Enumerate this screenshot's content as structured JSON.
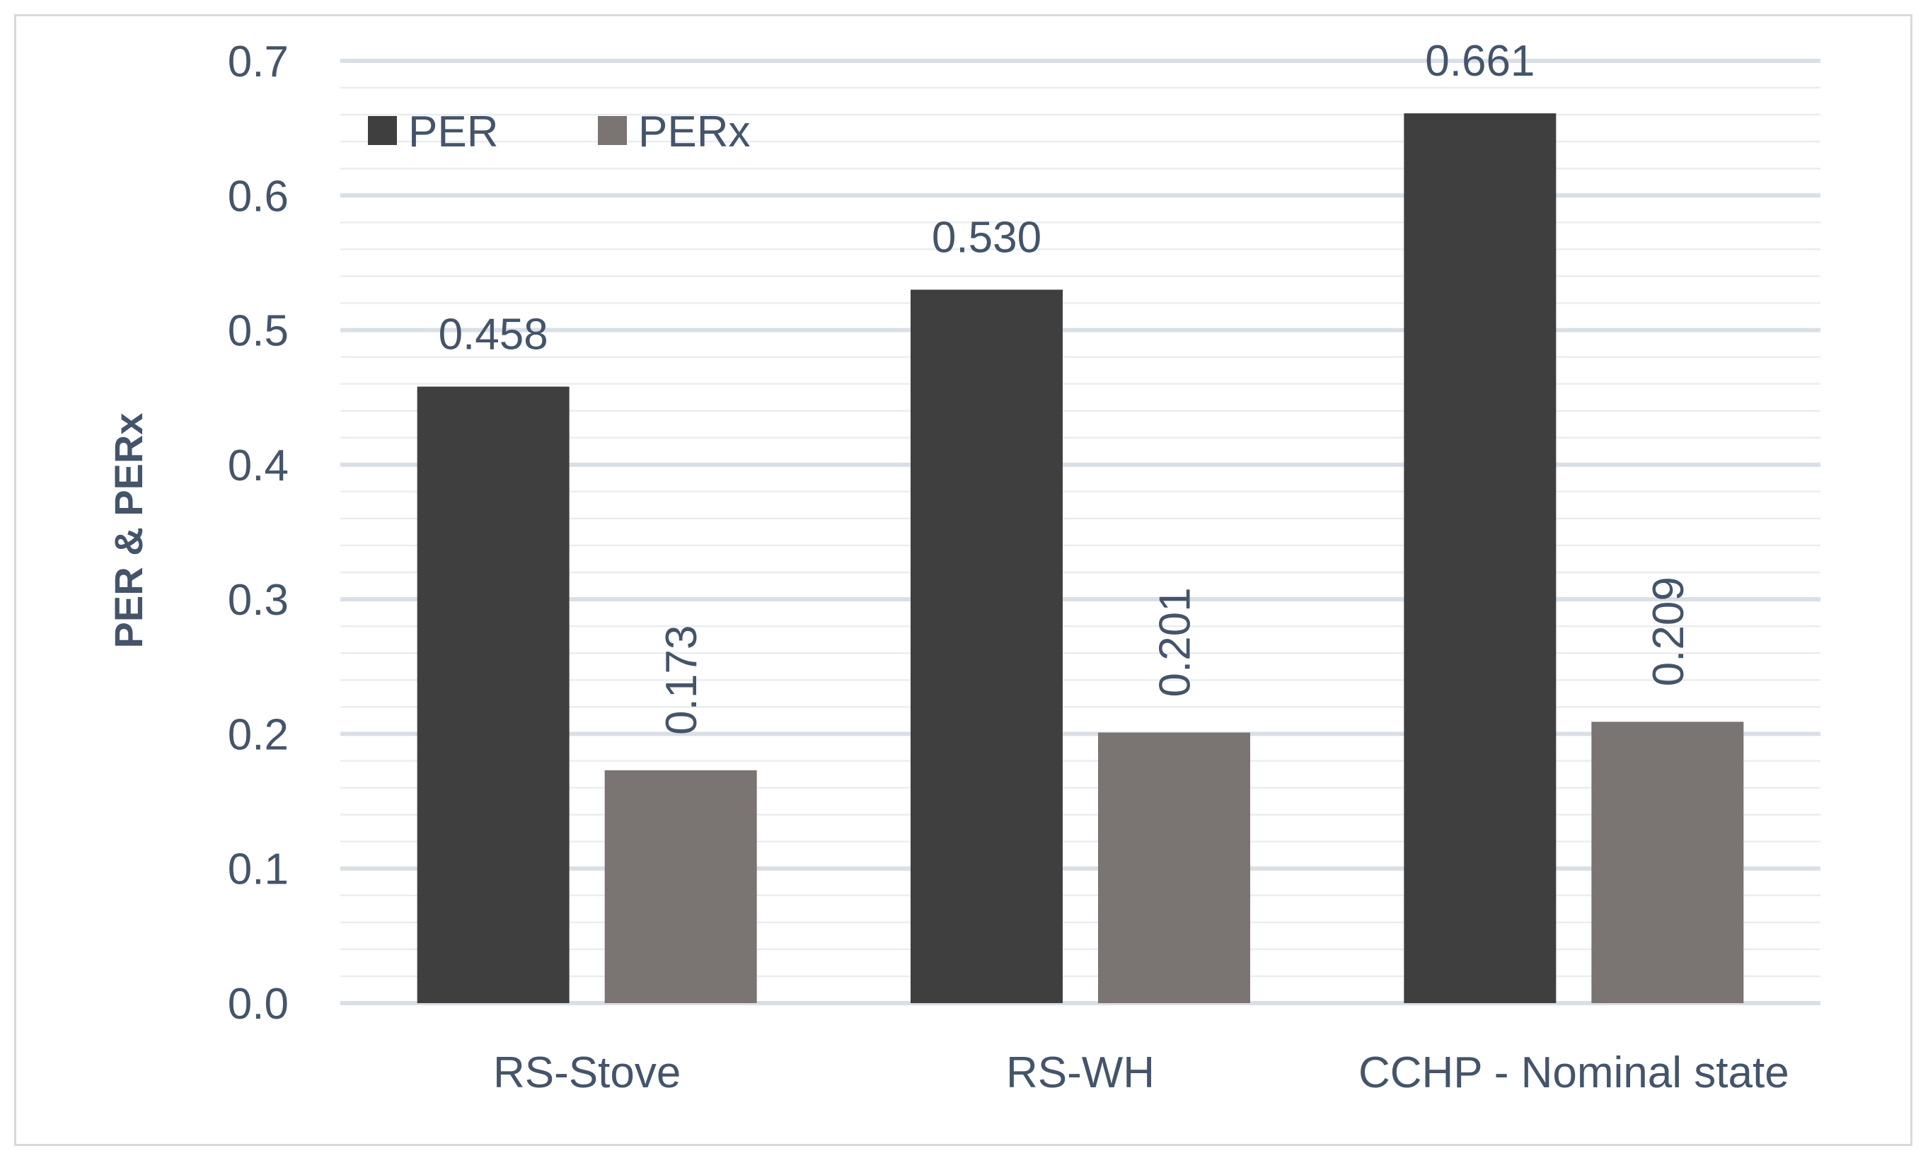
{
  "chart_data": {
    "type": "bar",
    "title": "",
    "xlabel": "",
    "ylabel": "PER & PERx",
    "categories": [
      "RS-Stove",
      "RS-WH",
      "CCHP - Nominal state"
    ],
    "series": [
      {
        "name": "PER",
        "values": [
          0.458,
          0.53,
          0.661
        ],
        "labels": [
          "0.458",
          "0.530",
          "0.661"
        ],
        "color": "#3f3f3f"
      },
      {
        "name": "PERx",
        "values": [
          0.173,
          0.201,
          0.209
        ],
        "labels": [
          "0.173",
          "0.201",
          "0.209"
        ],
        "color": "#7a7473"
      }
    ],
    "ylim": [
      0,
      0.7
    ],
    "yticks": [
      0.0,
      0.1,
      0.2,
      0.3,
      0.4,
      0.5,
      0.6,
      0.7
    ],
    "ytick_labels": [
      "0.0",
      "0.1",
      "0.2",
      "0.3",
      "0.4",
      "0.5",
      "0.6",
      "0.7"
    ],
    "grid": true,
    "minor_grid": true,
    "legend_position": "top-left",
    "data_label_orientation": {
      "PER": "horizontal",
      "PERx": "vertical"
    },
    "grid_color": "#d9dfe5",
    "text_color": "#44546a"
  }
}
